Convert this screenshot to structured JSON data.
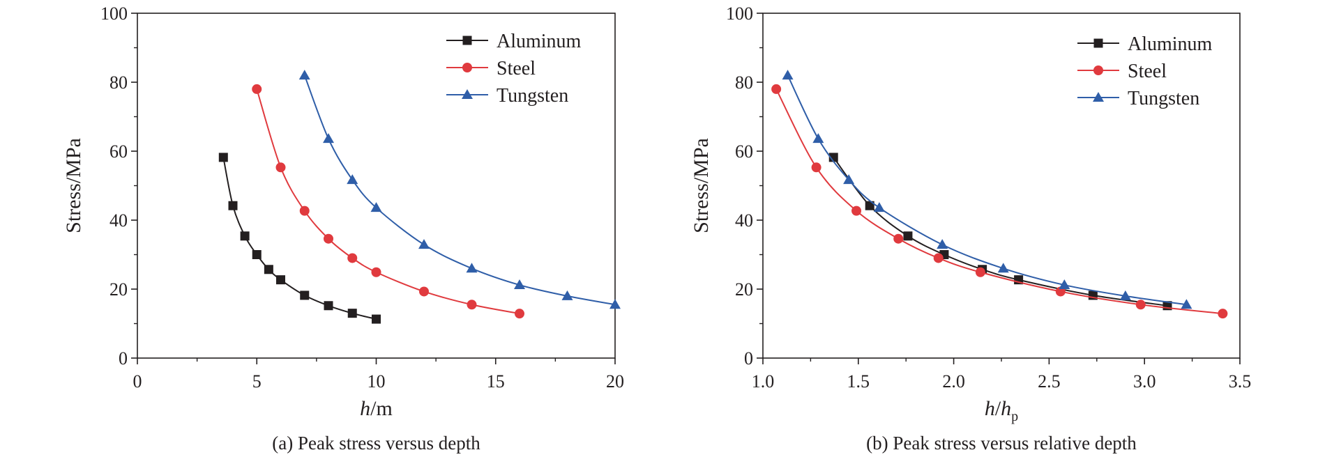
{
  "colors": {
    "aluminum": "#231f20",
    "steel": "#e03a3e",
    "tungsten": "#2f5ea8",
    "axis": "#231f20"
  },
  "chart_data": [
    {
      "type": "line",
      "caption": "(a) Peak stress versus depth",
      "xlabel_italic": "h",
      "xlabel_rest": "/m",
      "ylabel": "Stress/MPa",
      "xlim": [
        0,
        20
      ],
      "ylim": [
        0,
        100
      ],
      "xticks": [
        0,
        5,
        10,
        15,
        20
      ],
      "yticks": [
        0,
        20,
        40,
        60,
        80,
        100
      ],
      "xtick_labels": [
        "0",
        "5",
        "10",
        "15",
        "20"
      ],
      "ytick_labels": [
        "0",
        "20",
        "40",
        "60",
        "80",
        "100"
      ],
      "grid": false,
      "legend_position": "top-right",
      "series": [
        {
          "name": "Aluminum",
          "marker": "square",
          "color": "#231f20",
          "points": [
            [
              3.6,
              58.2
            ],
            [
              4.0,
              44.2
            ],
            [
              4.5,
              35.4
            ],
            [
              5.0,
              30.0
            ],
            [
              5.5,
              25.7
            ],
            [
              6.0,
              22.7
            ],
            [
              7.0,
              18.2
            ],
            [
              8.0,
              15.2
            ],
            [
              9.0,
              13.0
            ],
            [
              10.0,
              11.3
            ]
          ]
        },
        {
          "name": "Steel",
          "marker": "circle",
          "color": "#e03a3e",
          "points": [
            [
              5.0,
              78.0
            ],
            [
              6.0,
              55.3
            ],
            [
              7.0,
              42.7
            ],
            [
              8.0,
              34.6
            ],
            [
              9.0,
              29.0
            ],
            [
              10.0,
              24.9
            ],
            [
              12.0,
              19.3
            ],
            [
              14.0,
              15.5
            ],
            [
              16.0,
              12.9
            ]
          ]
        },
        {
          "name": "Tungsten",
          "marker": "triangle",
          "color": "#2f5ea8",
          "points": [
            [
              7.0,
              82.0
            ],
            [
              8.0,
              63.6
            ],
            [
              9.0,
              51.7
            ],
            [
              10.0,
              43.6
            ],
            [
              12.0,
              32.9
            ],
            [
              14.0,
              26.0
            ],
            [
              16.0,
              21.2
            ],
            [
              18.0,
              18.0
            ],
            [
              20.0,
              15.5
            ]
          ]
        }
      ]
    },
    {
      "type": "line",
      "caption": "(b) Peak stress versus relative depth",
      "xlabel_italic": "h",
      "xlabel_rest": "/",
      "xlabel_italic2": "h",
      "xlabel_sub": "p",
      "ylabel": "Stress/MPa",
      "xlim": [
        1.0,
        3.5
      ],
      "ylim": [
        0,
        100
      ],
      "xticks": [
        1.0,
        1.5,
        2.0,
        2.5,
        3.0,
        3.5
      ],
      "yticks": [
        0,
        20,
        40,
        60,
        80,
        100
      ],
      "xtick_labels": [
        "1.0",
        "1.5",
        "2.0",
        "2.5",
        "3.0",
        "3.5"
      ],
      "ytick_labels": [
        "0",
        "20",
        "40",
        "60",
        "80",
        "100"
      ],
      "grid": false,
      "legend_position": "top-right",
      "series": [
        {
          "name": "Aluminum",
          "marker": "square",
          "color": "#231f20",
          "points": [
            [
              1.37,
              58.2
            ],
            [
              1.56,
              44.2
            ],
            [
              1.76,
              35.4
            ],
            [
              1.95,
              30.0
            ],
            [
              2.15,
              25.7
            ],
            [
              2.34,
              22.7
            ],
            [
              2.73,
              18.2
            ],
            [
              3.12,
              15.2
            ]
          ]
        },
        {
          "name": "Steel",
          "marker": "circle",
          "color": "#e03a3e",
          "points": [
            [
              1.07,
              78.0
            ],
            [
              1.28,
              55.3
            ],
            [
              1.49,
              42.7
            ],
            [
              1.71,
              34.6
            ],
            [
              1.92,
              29.0
            ],
            [
              2.14,
              24.9
            ],
            [
              2.56,
              19.3
            ],
            [
              2.98,
              15.5
            ],
            [
              3.41,
              12.9
            ]
          ]
        },
        {
          "name": "Tungsten",
          "marker": "triangle",
          "color": "#2f5ea8",
          "points": [
            [
              1.13,
              82.0
            ],
            [
              1.29,
              63.6
            ],
            [
              1.45,
              51.7
            ],
            [
              1.61,
              43.6
            ],
            [
              1.94,
              32.9
            ],
            [
              2.26,
              26.0
            ],
            [
              2.58,
              21.2
            ],
            [
              2.9,
              18.0
            ],
            [
              3.22,
              15.5
            ]
          ]
        }
      ]
    }
  ]
}
